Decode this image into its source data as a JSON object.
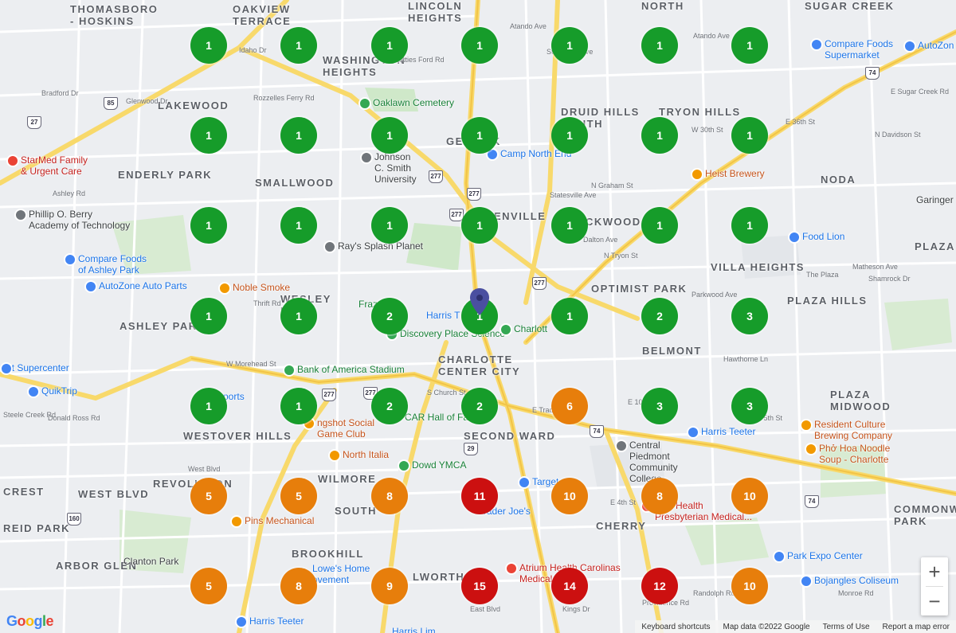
{
  "map": {
    "areas": [
      {
        "name": "THOMASBORO - HOSKINS",
        "lines": [
          "THOMASBORO",
          "- HOSKINS"
        ]
      },
      {
        "name": "OAKVIEW TERRACE",
        "lines": [
          "OAKVIEW",
          "TERRACE"
        ]
      },
      {
        "name": "LINCOLN HEIGHTS",
        "lines": [
          "LINCOLN",
          "HEIGHTS"
        ]
      },
      {
        "name": "NORTH",
        "lines": [
          "NORTH"
        ]
      },
      {
        "name": "SUGAR CREEK",
        "lines": [
          "SUGAR CREEK"
        ]
      },
      {
        "name": "WASHINGTON HEIGHTS",
        "lines": [
          "WASHINGTON",
          "HEIGHTS"
        ]
      },
      {
        "name": "LAKEWOOD",
        "lines": [
          "LAKEWOOD"
        ]
      },
      {
        "name": "DRUID HILLS SOUTH",
        "lines": [
          "DRUID HILLS",
          "SOUTH"
        ]
      },
      {
        "name": "TRYON HILLS",
        "lines": [
          "TRYON HILLS"
        ]
      },
      {
        "name": "GENESIS PARK",
        "lines": [
          "GE          PARK"
        ]
      },
      {
        "name": "ENDERLY PARK",
        "lines": [
          "ENDERLY PARK"
        ]
      },
      {
        "name": "SMALLWOOD",
        "lines": [
          "SMALLWOOD"
        ]
      },
      {
        "name": "NODA",
        "lines": [
          "NODA"
        ]
      },
      {
        "name": "GREENVILLE",
        "lines": [
          "ENVILLE"
        ]
      },
      {
        "name": "LOCKWOOD",
        "lines": [
          "CKWOOD"
        ]
      },
      {
        "name": "PLAZA",
        "lines": [
          "PLAZA"
        ]
      },
      {
        "name": "VILLA HEIGHTS",
        "lines": [
          "VILLA HEIGHTS"
        ]
      },
      {
        "name": "OPTIMIST PARK",
        "lines": [
          "OPTIMIST PARK"
        ]
      },
      {
        "name": "PLAZA HILLS",
        "lines": [
          "PLAZA HILLS"
        ]
      },
      {
        "name": "WESLEY HEIGHTS",
        "lines": [
          "WESLEY",
          "H     TS"
        ]
      },
      {
        "name": "ASHLEY PARK",
        "lines": [
          "ASHLEY PAR"
        ]
      },
      {
        "name": "BELMONT",
        "lines": [
          "BELMONT"
        ]
      },
      {
        "name": "CHARLOTTE CENTER CITY",
        "lines": [
          "CHARLOTTE",
          "CENTER CITY"
        ]
      },
      {
        "name": "PLAZA MIDWOOD",
        "lines": [
          "PLAZA",
          "MIDWOOD"
        ]
      },
      {
        "name": "WESTOVER HILLS",
        "lines": [
          "WESTOVER HILLS"
        ]
      },
      {
        "name": "SECOND WARD",
        "lines": [
          "SECOND WARD"
        ]
      },
      {
        "name": "WILMORE",
        "lines": [
          "WILMORE"
        ]
      },
      {
        "name": "REVOLUTION PARK",
        "lines": [
          "REVOLUTION"
        ]
      },
      {
        "name": "CREST",
        "lines": [
          "CREST"
        ]
      },
      {
        "name": "WEST BLVD",
        "lines": [
          "WEST BLVD"
        ]
      },
      {
        "name": "SOUTH END",
        "lines": [
          "SOUTH"
        ]
      },
      {
        "name": "COMMONWEALTH PARK",
        "lines": [
          "COMMONWEA",
          "PARK"
        ]
      },
      {
        "name": "CHERRY",
        "lines": [
          "CHERRY"
        ]
      },
      {
        "name": "REID PARK",
        "lines": [
          "REID PARK"
        ]
      },
      {
        "name": "BROOKHILL",
        "lines": [
          "BROOKHILL"
        ]
      },
      {
        "name": "ARBOR GLEN",
        "lines": [
          "ARBOR GLEN"
        ]
      },
      {
        "name": "DILWORTH",
        "lines": [
          "LWORTH"
        ]
      }
    ],
    "pois": [
      {
        "name": "Compare Foods Supermarket",
        "lines": [
          "Compare Foods",
          "Supermarket"
        ],
        "color": "blue",
        "icon": "cart-icon"
      },
      {
        "name": "AutoZon",
        "lines": [
          "AutoZon"
        ],
        "color": "blue",
        "icon": "shop-icon"
      },
      {
        "name": "Oaklawn Cemetery",
        "lines": [
          "Oaklawn Cemetery"
        ],
        "color": "green",
        "icon": "cemetery-icon"
      },
      {
        "name": "StarMed Family & Urgent Care",
        "lines": [
          "StarMed Family",
          "& Urgent Care"
        ],
        "color": "red",
        "icon": "medical-icon"
      },
      {
        "name": "Johnson C. Smith University",
        "lines": [
          "Johnson",
          "C. Smith",
          "University"
        ],
        "color": "dark",
        "icon": "school-icon"
      },
      {
        "name": "Camp North End",
        "lines": [
          "Camp North End"
        ],
        "color": "blue",
        "icon": "attraction-icon"
      },
      {
        "name": "Heist Brewery",
        "lines": [
          "Heist Brewery"
        ],
        "color": "orange",
        "icon": "bar-icon"
      },
      {
        "name": "Garinger",
        "lines": [
          "Garinger"
        ],
        "color": "dark",
        "icon": ""
      },
      {
        "name": "Phillip O. Berry Academy of Technology",
        "lines": [
          "Phillip O. Berry",
          "Academy of Technology"
        ],
        "color": "dark",
        "icon": "school-icon"
      },
      {
        "name": "Ray's Splash Planet",
        "lines": [
          "Ray's Splash Planet"
        ],
        "color": "dark",
        "icon": "park-icon"
      },
      {
        "name": "Food Lion",
        "lines": [
          "Food Lion"
        ],
        "color": "blue",
        "icon": "cart-icon"
      },
      {
        "name": "Compare Foods of Ashley Park",
        "lines": [
          "Compare Foods",
          "of Ashley Park"
        ],
        "color": "blue",
        "icon": "cart-icon"
      },
      {
        "name": "AutoZone Auto Parts",
        "lines": [
          "AutoZone Auto Parts"
        ],
        "color": "blue",
        "icon": "shop-icon"
      },
      {
        "name": "Noble Smoke",
        "lines": [
          "Noble Smoke"
        ],
        "color": "orange",
        "icon": "restaurant-icon"
      },
      {
        "name": "Frazier Park",
        "lines": [
          "Fraz       rk"
        ],
        "color": "green",
        "icon": ""
      },
      {
        "name": "Harris Teeter",
        "lines": [
          "Harris T"
        ],
        "color": "blue",
        "icon": ""
      },
      {
        "name": "Discovery Place Science",
        "lines": [
          "Discovery Place Science"
        ],
        "color": "green",
        "icon": "museum-icon"
      },
      {
        "name": "Charlott",
        "lines": [
          "Charlott"
        ],
        "color": "green",
        "icon": "park-icon"
      },
      {
        "name": "Bank of America Stadium",
        "lines": [
          "Bank of America Stadium"
        ],
        "color": "green",
        "icon": "stadium-icon"
      },
      {
        "name": "Supercenter",
        "lines": [
          "art Supercenter"
        ],
        "color": "blue",
        "icon": "cart-icon"
      },
      {
        "name": "QuikTrip",
        "lines": [
          "QuikTrip"
        ],
        "color": "blue",
        "icon": "gas-icon"
      },
      {
        "name": "Smokestack Sports",
        "lines": [
          "Sh         ports"
        ],
        "color": "blue",
        "icon": ""
      },
      {
        "name": "Slingshot Social Game Club",
        "lines": [
          "ngshot Social",
          "Game Club"
        ],
        "color": "orange",
        "icon": "bar-icon"
      },
      {
        "name": "NASCAR Hall of Fame",
        "lines": [
          "CAR Hall of Fa"
        ],
        "color": "green",
        "icon": ""
      },
      {
        "name": "Resident Culture Brewing Company",
        "lines": [
          "Resident Culture",
          "Brewing Company"
        ],
        "color": "orange",
        "icon": "bar-icon"
      },
      {
        "name": "Harris Teeter Plaza",
        "lines": [
          "Harris Teeter"
        ],
        "color": "blue",
        "icon": "cart-icon"
      },
      {
        "name": "Central Piedmont Community College",
        "lines": [
          "Central",
          "Piedmont",
          "Community",
          "College"
        ],
        "color": "dark",
        "icon": "school-icon"
      },
      {
        "name": "Pho Hoa Noodle Soup - Charlotte",
        "lines": [
          "Phở Hoa Noodle",
          "Soup - Charlotte"
        ],
        "color": "orange",
        "icon": "restaurant-icon"
      },
      {
        "name": "North Italia",
        "lines": [
          "North Italia"
        ],
        "color": "orange",
        "icon": "restaurant-icon"
      },
      {
        "name": "Dowd YMCA",
        "lines": [
          "Dowd YMCA"
        ],
        "color": "green",
        "icon": "pin-icon"
      },
      {
        "name": "Target",
        "lines": [
          "Target"
        ],
        "color": "blue",
        "icon": "cart-icon"
      },
      {
        "name": "Trader Joe's",
        "lines": [
          "Trader Joe's"
        ],
        "color": "blue",
        "icon": ""
      },
      {
        "name": "Novant Health Presbyterian Medical",
        "lines": [
          "vant Health",
          "Presbyterian Medical..."
        ],
        "color": "red",
        "icon": "medical-icon"
      },
      {
        "name": "Pins Mechanical",
        "lines": [
          "Pins Mechanical"
        ],
        "color": "orange",
        "icon": "bar-icon"
      },
      {
        "name": "Clanton Park",
        "lines": [
          "Clanton Park"
        ],
        "color": "dark",
        "icon": ""
      },
      {
        "name": "Lowe's Home Improvement",
        "lines": [
          "Lowe's Home",
          "ovement"
        ],
        "color": "blue",
        "icon": ""
      },
      {
        "name": "Atrium Health Carolinas Medical",
        "lines": [
          "Atrium Health Carolinas",
          "Medical"
        ],
        "color": "red",
        "icon": "medical-icon"
      },
      {
        "name": "Park Expo Center",
        "lines": [
          "Park Expo Center"
        ],
        "color": "blue",
        "icon": "attraction-icon"
      },
      {
        "name": "Bojangles Coliseum",
        "lines": [
          "Bojangles Coliseum"
        ],
        "color": "blue",
        "icon": "music-icon"
      },
      {
        "name": "Harris Teeter South",
        "lines": [
          "Harris Teeter"
        ],
        "color": "blue",
        "icon": "cart-icon"
      },
      {
        "name": "Harris Teeter Lower",
        "lines": [
          "Harris Lim"
        ],
        "color": "blue",
        "icon": ""
      }
    ],
    "streets": [
      "Atando Ave",
      "Atando Ave",
      "Idaho Dr",
      "Beatties Ford Rd",
      "Rozzelles Ferry Rd",
      "Glenwood Dr",
      "Bradford Dr",
      "Statesville Ave",
      "Statesville Ave",
      "N Graham St",
      "W 30th St",
      "N Tryon St",
      "E 36th St",
      "N Davidson St",
      "E Sugar Creek Rd",
      "Ashley Rd",
      "Dalton Ave",
      "The Plaza",
      "Matheson Ave",
      "Shamrock Dr",
      "Parkwood Ave",
      "Thrift Rd",
      "W Morehead St",
      "S Church St",
      "E Trade St",
      "E 10th St",
      "E 5th St",
      "Hawthorne Ln",
      "Steele Creek Rd",
      "Donald Ross Rd",
      "West Blvd",
      "E 4th St",
      "Randolph Rd",
      "Monroe Rd",
      "Providence Rd",
      "East Blvd",
      "Kings Dr"
    ],
    "shields": [
      "27",
      "85",
      "277",
      "277",
      "277",
      "277",
      "277",
      "277",
      "74",
      "74",
      "160",
      "74",
      "29"
    ],
    "clusters": {
      "rows": [
        [
          1,
          1,
          1,
          1,
          1,
          1,
          1
        ],
        [
          1,
          1,
          1,
          1,
          1,
          1,
          1
        ],
        [
          1,
          1,
          1,
          1,
          1,
          1,
          1
        ],
        [
          1,
          1,
          2,
          1,
          1,
          2,
          3
        ],
        [
          1,
          1,
          2,
          2,
          6,
          3,
          3
        ],
        [
          5,
          5,
          8,
          11,
          10,
          8,
          10
        ],
        [
          5,
          8,
          9,
          15,
          14,
          12,
          10
        ]
      ]
    },
    "cluster_colors": {
      "low": "#169c2a",
      "medium": "#e77e0b",
      "high": "#cc1010"
    },
    "cluster_thresholds": {
      "medium_min": 5,
      "high_min": 11
    },
    "marker": {
      "label": "Selected location",
      "icon": "location-pin-icon",
      "color": "#4a4fa0"
    },
    "controls": {
      "zoom_in": "+",
      "zoom_out": "−"
    },
    "footer": {
      "shortcuts": "Keyboard shortcuts",
      "map_data": "Map data ©2022 Google",
      "terms": "Terms of Use",
      "report": "Report a map error"
    },
    "brand": "Google"
  }
}
